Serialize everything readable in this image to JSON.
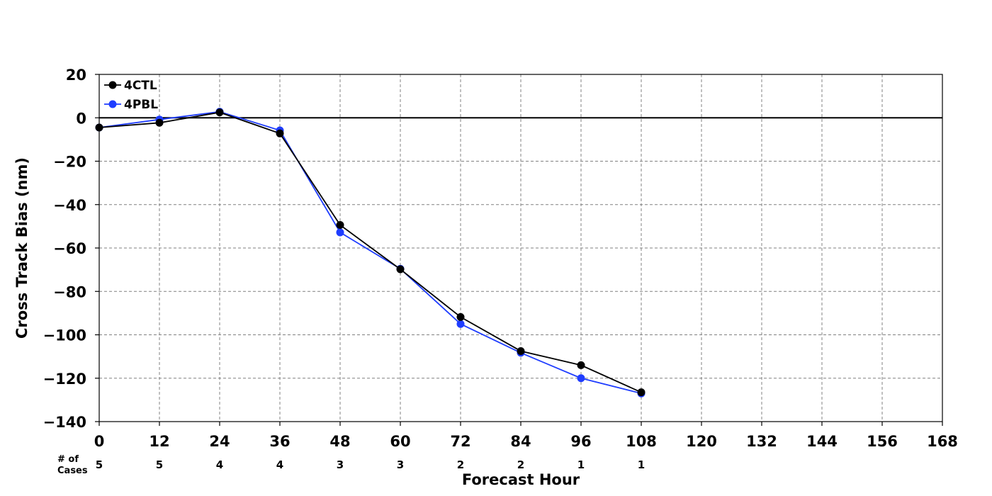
{
  "chart_data": {
    "type": "line",
    "xlabel": "Forecast Hour",
    "ylabel": "Cross Track Bias (nm)",
    "xlim": [
      0,
      168
    ],
    "ylim": [
      -140,
      20
    ],
    "x_ticks": [
      0,
      12,
      24,
      36,
      48,
      60,
      72,
      84,
      96,
      108,
      120,
      132,
      144,
      156,
      168
    ],
    "y_ticks": [
      20,
      0,
      -20,
      -40,
      -60,
      -80,
      -100,
      -120,
      -140
    ],
    "grid": true,
    "legend_position": "top-left",
    "x": [
      0,
      12,
      24,
      36,
      48,
      60,
      72,
      84,
      96,
      108
    ],
    "series": [
      {
        "name": "4CTL",
        "color": "#000000",
        "values": [
          -4.5,
          -2.3,
          2.5,
          -7.2,
          -49.4,
          -69.8,
          -91.8,
          -107.5,
          -114.0,
          -126.5
        ]
      },
      {
        "name": "4PBL",
        "color": "#1f3dff",
        "values": [
          -4.5,
          -0.8,
          2.8,
          -5.8,
          -52.8,
          -69.6,
          -95.0,
          -108.3,
          -120.0,
          -127.0
        ]
      }
    ],
    "cases": {
      "label_line1": "# of",
      "label_line2": "Cases",
      "x": [
        0,
        12,
        24,
        36,
        48,
        60,
        72,
        84,
        96,
        108
      ],
      "values": [
        "5",
        "5",
        "4",
        "4",
        "3",
        "3",
        "2",
        "2",
        "1",
        "1"
      ]
    }
  }
}
